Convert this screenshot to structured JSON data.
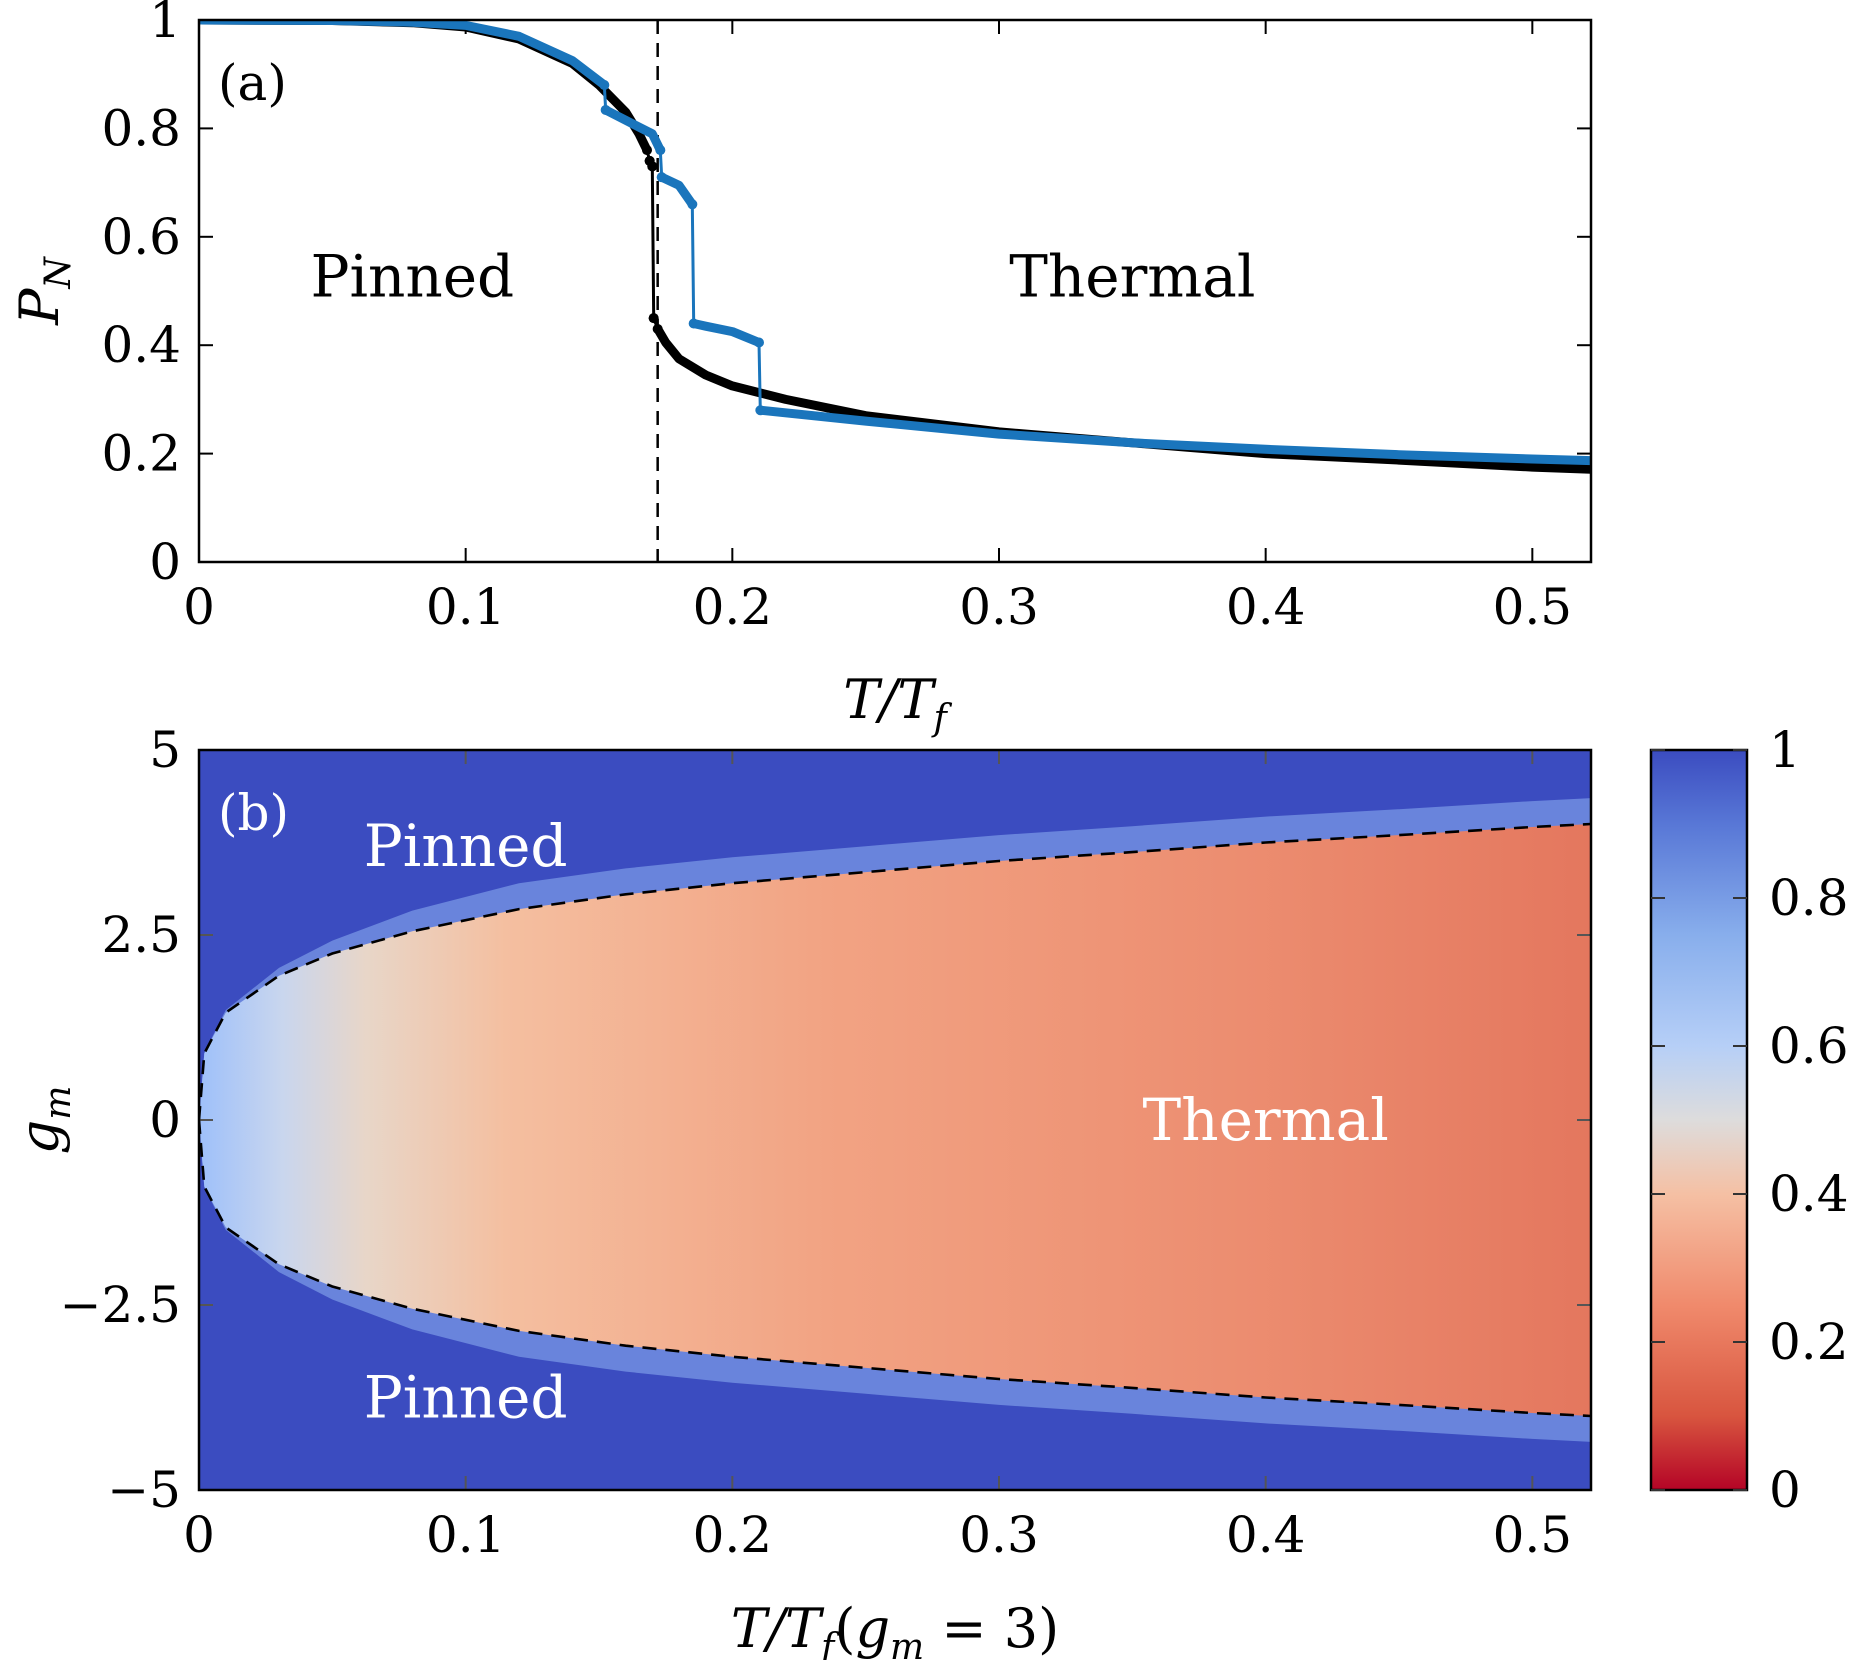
{
  "chart_data": [
    {
      "type": "line",
      "panel_label": "(a)",
      "xlabel": "T/T_f",
      "xlabel_parts": {
        "main": "T/T",
        "sub": "f"
      },
      "ylabel": "P_N",
      "ylabel_parts": {
        "main": "P",
        "sub": "N"
      },
      "xlim": [
        0,
        0.522
      ],
      "ylim": [
        0,
        1
      ],
      "xticks": [
        0,
        0.1,
        0.2,
        0.3,
        0.4,
        0.5
      ],
      "xtick_labels": [
        "0",
        "0.1",
        "0.2",
        "0.3",
        "0.4",
        "0.5"
      ],
      "yticks": [
        0,
        0.2,
        0.4,
        0.6,
        0.8,
        1
      ],
      "ytick_labels": [
        "0",
        "0.2",
        "0.4",
        "0.6",
        "0.8",
        "1"
      ],
      "vline_dashed_x": 0.172,
      "annotations": [
        {
          "text": "Pinned",
          "x": 0.08,
          "y": 0.49
        },
        {
          "text": "Thermal",
          "x": 0.35,
          "y": 0.49
        }
      ],
      "series": [
        {
          "color": "#000000",
          "x": [
            0,
            0.05,
            0.08,
            0.1,
            0.12,
            0.14,
            0.15,
            0.16,
            0.165,
            0.168,
            0.169,
            0.17,
            0.1705,
            0.172,
            0.175,
            0.18,
            0.19,
            0.2,
            0.22,
            0.25,
            0.3,
            0.35,
            0.4,
            0.45,
            0.5,
            0.522
          ],
          "y": [
            1,
            0.999,
            0.995,
            0.987,
            0.965,
            0.92,
            0.88,
            0.83,
            0.79,
            0.76,
            0.74,
            0.73,
            0.45,
            0.43,
            0.405,
            0.375,
            0.345,
            0.325,
            0.3,
            0.27,
            0.24,
            0.22,
            0.2,
            0.188,
            0.175,
            0.171
          ]
        },
        {
          "color": "#1a75bc",
          "x": [
            0,
            0.05,
            0.08,
            0.1,
            0.12,
            0.14,
            0.152,
            0.1525,
            0.16,
            0.17,
            0.173,
            0.1735,
            0.18,
            0.185,
            0.1855,
            0.19,
            0.2,
            0.21,
            0.2105,
            0.25,
            0.3,
            0.35,
            0.4,
            0.45,
            0.5,
            0.522
          ],
          "y": [
            1,
            0.999,
            0.996,
            0.99,
            0.97,
            0.925,
            0.88,
            0.834,
            0.815,
            0.79,
            0.76,
            0.71,
            0.695,
            0.66,
            0.44,
            0.435,
            0.425,
            0.405,
            0.28,
            0.26,
            0.236,
            0.22,
            0.208,
            0.198,
            0.19,
            0.187
          ]
        }
      ]
    },
    {
      "type": "heatmap",
      "panel_label": "(b)",
      "xlabel": "T/T_f(g_m = 3)",
      "xlabel_parts": {
        "main": "T/T",
        "sub": "f",
        "paren_open": "(",
        "g": "g",
        "gsub": "m",
        "rest": " = 3)"
      },
      "ylabel": "g_m",
      "ylabel_parts": {
        "main": "g",
        "sub": "m"
      },
      "xlim": [
        0,
        0.522
      ],
      "ylim": [
        -5,
        5
      ],
      "xticks": [
        0,
        0.1,
        0.2,
        0.3,
        0.4,
        0.5
      ],
      "xtick_labels": [
        "0",
        "0.1",
        "0.2",
        "0.3",
        "0.4",
        "0.5"
      ],
      "yticks": [
        -5,
        -2.5,
        0,
        2.5,
        5
      ],
      "ytick_labels": [
        "−5",
        "−2.5",
        "0",
        "2.5",
        "5"
      ],
      "colorbar": {
        "range": [
          0,
          1
        ],
        "ticks": [
          0,
          0.2,
          0.4,
          0.6,
          0.8,
          1
        ],
        "tick_labels": [
          "0",
          "0.2",
          "0.4",
          "0.6",
          "0.8",
          "1"
        ],
        "colormap": "coolwarm_r"
      },
      "boundary_dashed": {
        "x": [
          0,
          0.002,
          0.01,
          0.03,
          0.05,
          0.08,
          0.12,
          0.16,
          0.2,
          0.25,
          0.3,
          0.35,
          0.4,
          0.45,
          0.5,
          0.522
        ],
        "g_upper": [
          0,
          0.9,
          1.45,
          1.95,
          2.25,
          2.55,
          2.85,
          3.05,
          3.2,
          3.35,
          3.5,
          3.62,
          3.75,
          3.85,
          3.96,
          4.0
        ]
      },
      "thermal_value_x": [
        0.0,
        0.05,
        0.1,
        0.2,
        0.3,
        0.4,
        0.522
      ],
      "thermal_value_p": [
        0.6,
        0.5,
        0.42,
        0.32,
        0.27,
        0.24,
        0.21
      ],
      "annotations": [
        {
          "text": "Pinned",
          "x": 0.1,
          "y": 3.7
        },
        {
          "text": "Thermal",
          "x": 0.4,
          "y": 0
        },
        {
          "text": "Pinned",
          "x": 0.1,
          "y": -3.75
        }
      ]
    }
  ]
}
